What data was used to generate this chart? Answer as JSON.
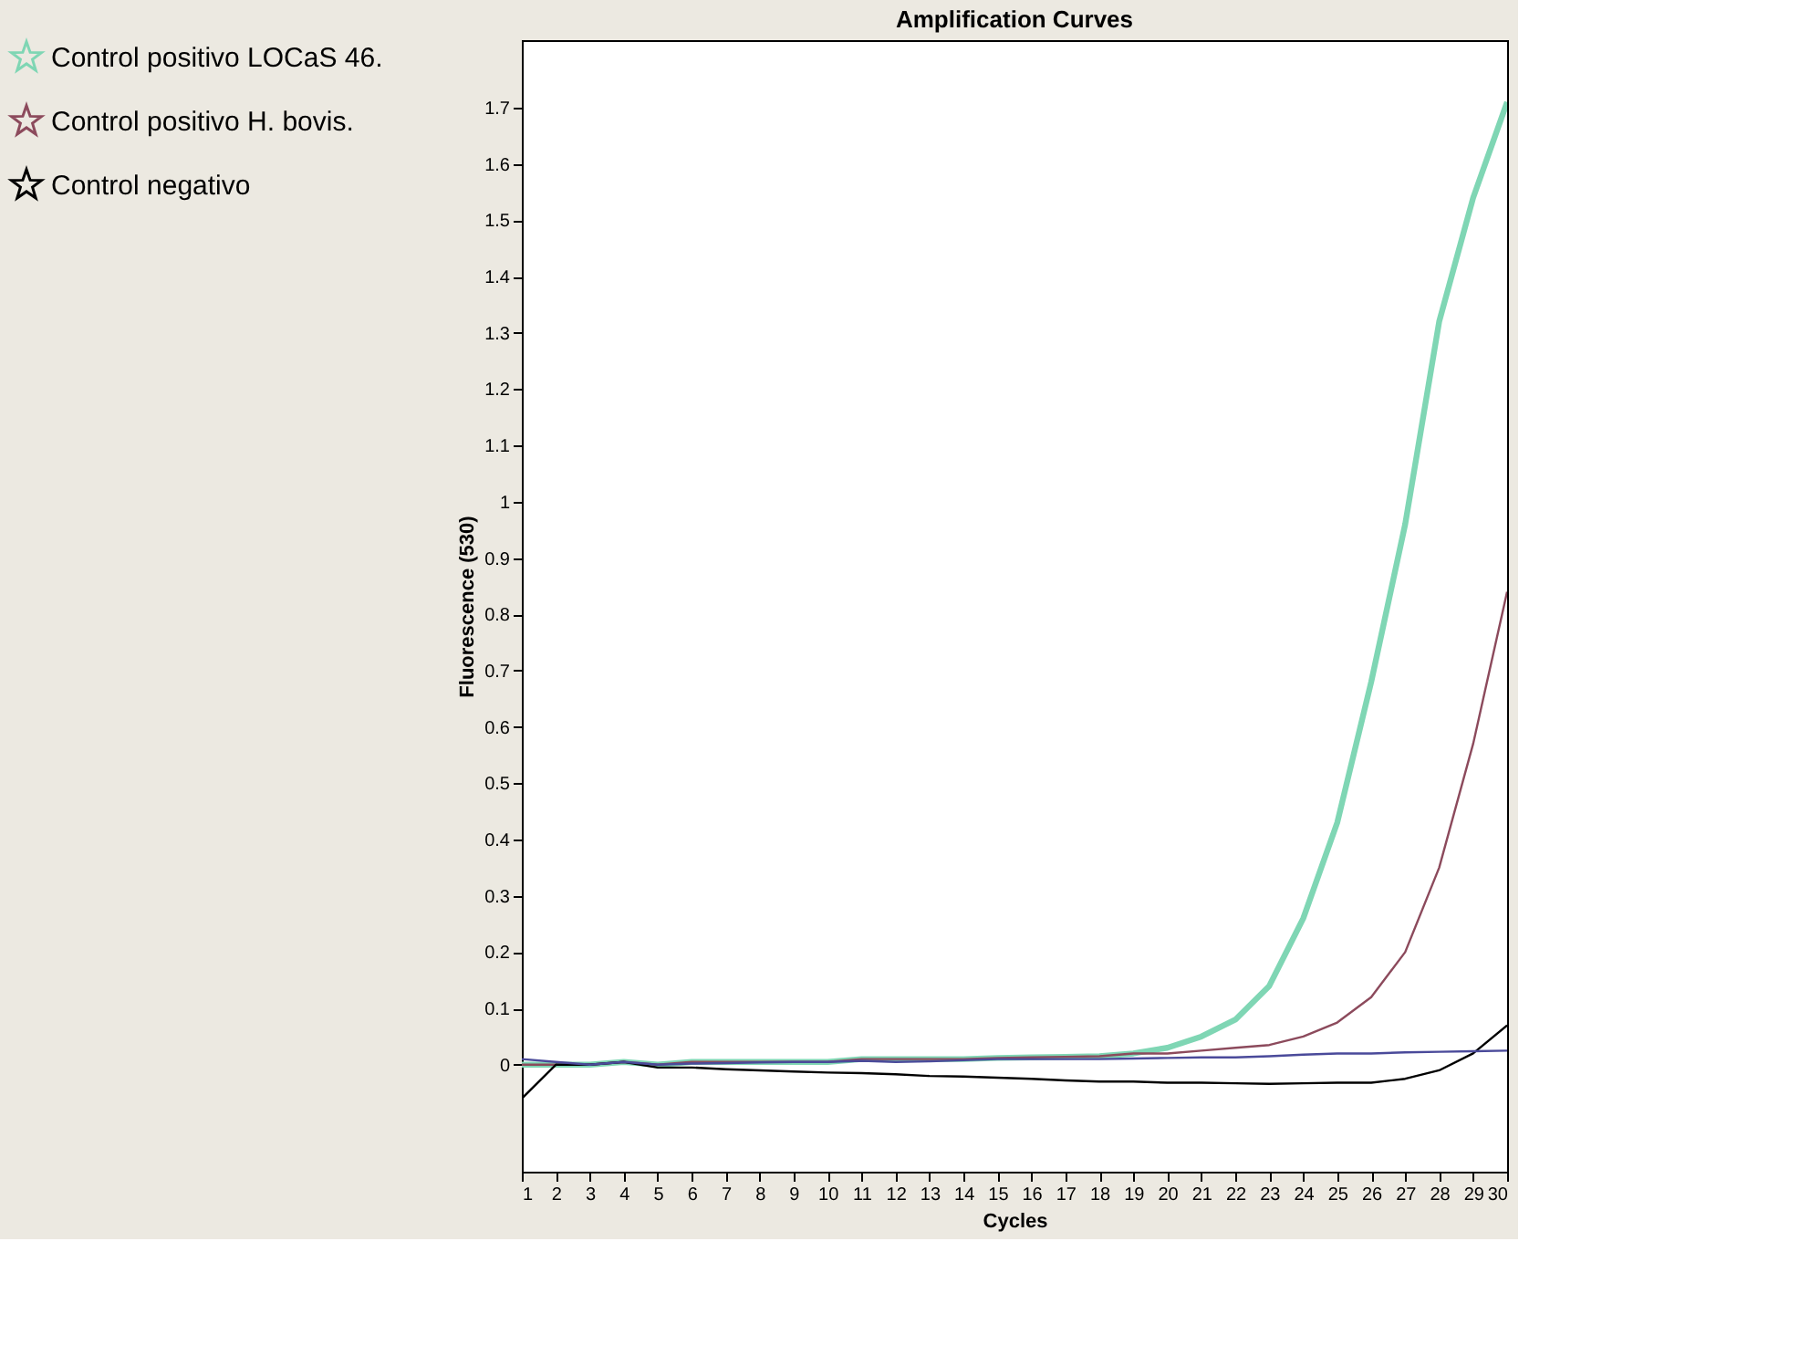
{
  "chart_data": {
    "type": "line",
    "title": "Amplification Curves",
    "xlabel": "Cycles",
    "ylabel": "Fluorescence (530)",
    "x": [
      1,
      2,
      3,
      4,
      5,
      6,
      7,
      8,
      9,
      10,
      11,
      12,
      13,
      14,
      15,
      16,
      17,
      18,
      19,
      20,
      21,
      22,
      23,
      24,
      25,
      26,
      27,
      28,
      29,
      30
    ],
    "series": [
      {
        "name": "Control positivo LOCaS 46.",
        "color": "#7fd6b4",
        "values": [
          0,
          0,
          0,
          0.005,
          0,
          0.005,
          0.005,
          0.005,
          0.005,
          0.005,
          0.01,
          0.01,
          0.01,
          0.01,
          0.012,
          0.013,
          0.014,
          0.015,
          0.02,
          0.03,
          0.05,
          0.08,
          0.14,
          0.26,
          0.43,
          0.68,
          0.96,
          1.32,
          1.54,
          1.71
        ]
      },
      {
        "name": "Control positivo H. bovis.",
        "color": "#8c4a5c",
        "values": [
          0,
          0,
          0,
          0.005,
          0,
          0.005,
          0.005,
          0.005,
          0.005,
          0.005,
          0.01,
          0.01,
          0.01,
          0.01,
          0.012,
          0.013,
          0.014,
          0.015,
          0.02,
          0.02,
          0.025,
          0.03,
          0.035,
          0.05,
          0.075,
          0.12,
          0.2,
          0.35,
          0.57,
          0.84
        ]
      },
      {
        "name": "Control negativo",
        "color": "#000000",
        "values": [
          -0.06,
          0,
          0,
          0.005,
          -0.005,
          -0.005,
          -0.008,
          -0.01,
          -0.012,
          -0.014,
          -0.015,
          -0.017,
          -0.02,
          -0.021,
          -0.023,
          -0.025,
          -0.028,
          -0.03,
          -0.03,
          -0.032,
          -0.032,
          -0.033,
          -0.034,
          -0.033,
          -0.032,
          -0.032,
          -0.025,
          -0.01,
          0.02,
          0.07
        ]
      },
      {
        "color": "#4a4a9a",
        "values": [
          0.01,
          0.005,
          0,
          0.005,
          0,
          0.002,
          0.003,
          0.004,
          0.005,
          0.005,
          0.007,
          0.005,
          0.006,
          0.008,
          0.01,
          0.01,
          0.01,
          0.01,
          0.011,
          0.012,
          0.013,
          0.013,
          0.015,
          0.018,
          0.02,
          0.02,
          0.022,
          0.023,
          0.024,
          0.025
        ]
      }
    ],
    "xlim": [
      1,
      30
    ],
    "xticks": [
      1,
      2,
      3,
      4,
      5,
      6,
      7,
      8,
      9,
      10,
      11,
      12,
      13,
      14,
      15,
      16,
      17,
      18,
      19,
      20,
      21,
      22,
      23,
      24,
      25,
      26,
      27,
      28,
      29,
      30
    ],
    "ylim": [
      -0.19,
      1.82
    ],
    "yticks": [
      0,
      0.1,
      0.2,
      0.3,
      0.4,
      0.5,
      0.6,
      0.7,
      0.8,
      0.9,
      1,
      1.1,
      1.2,
      1.3,
      1.4,
      1.5,
      1.6,
      1.7
    ],
    "grid": false,
    "legend": "left"
  }
}
